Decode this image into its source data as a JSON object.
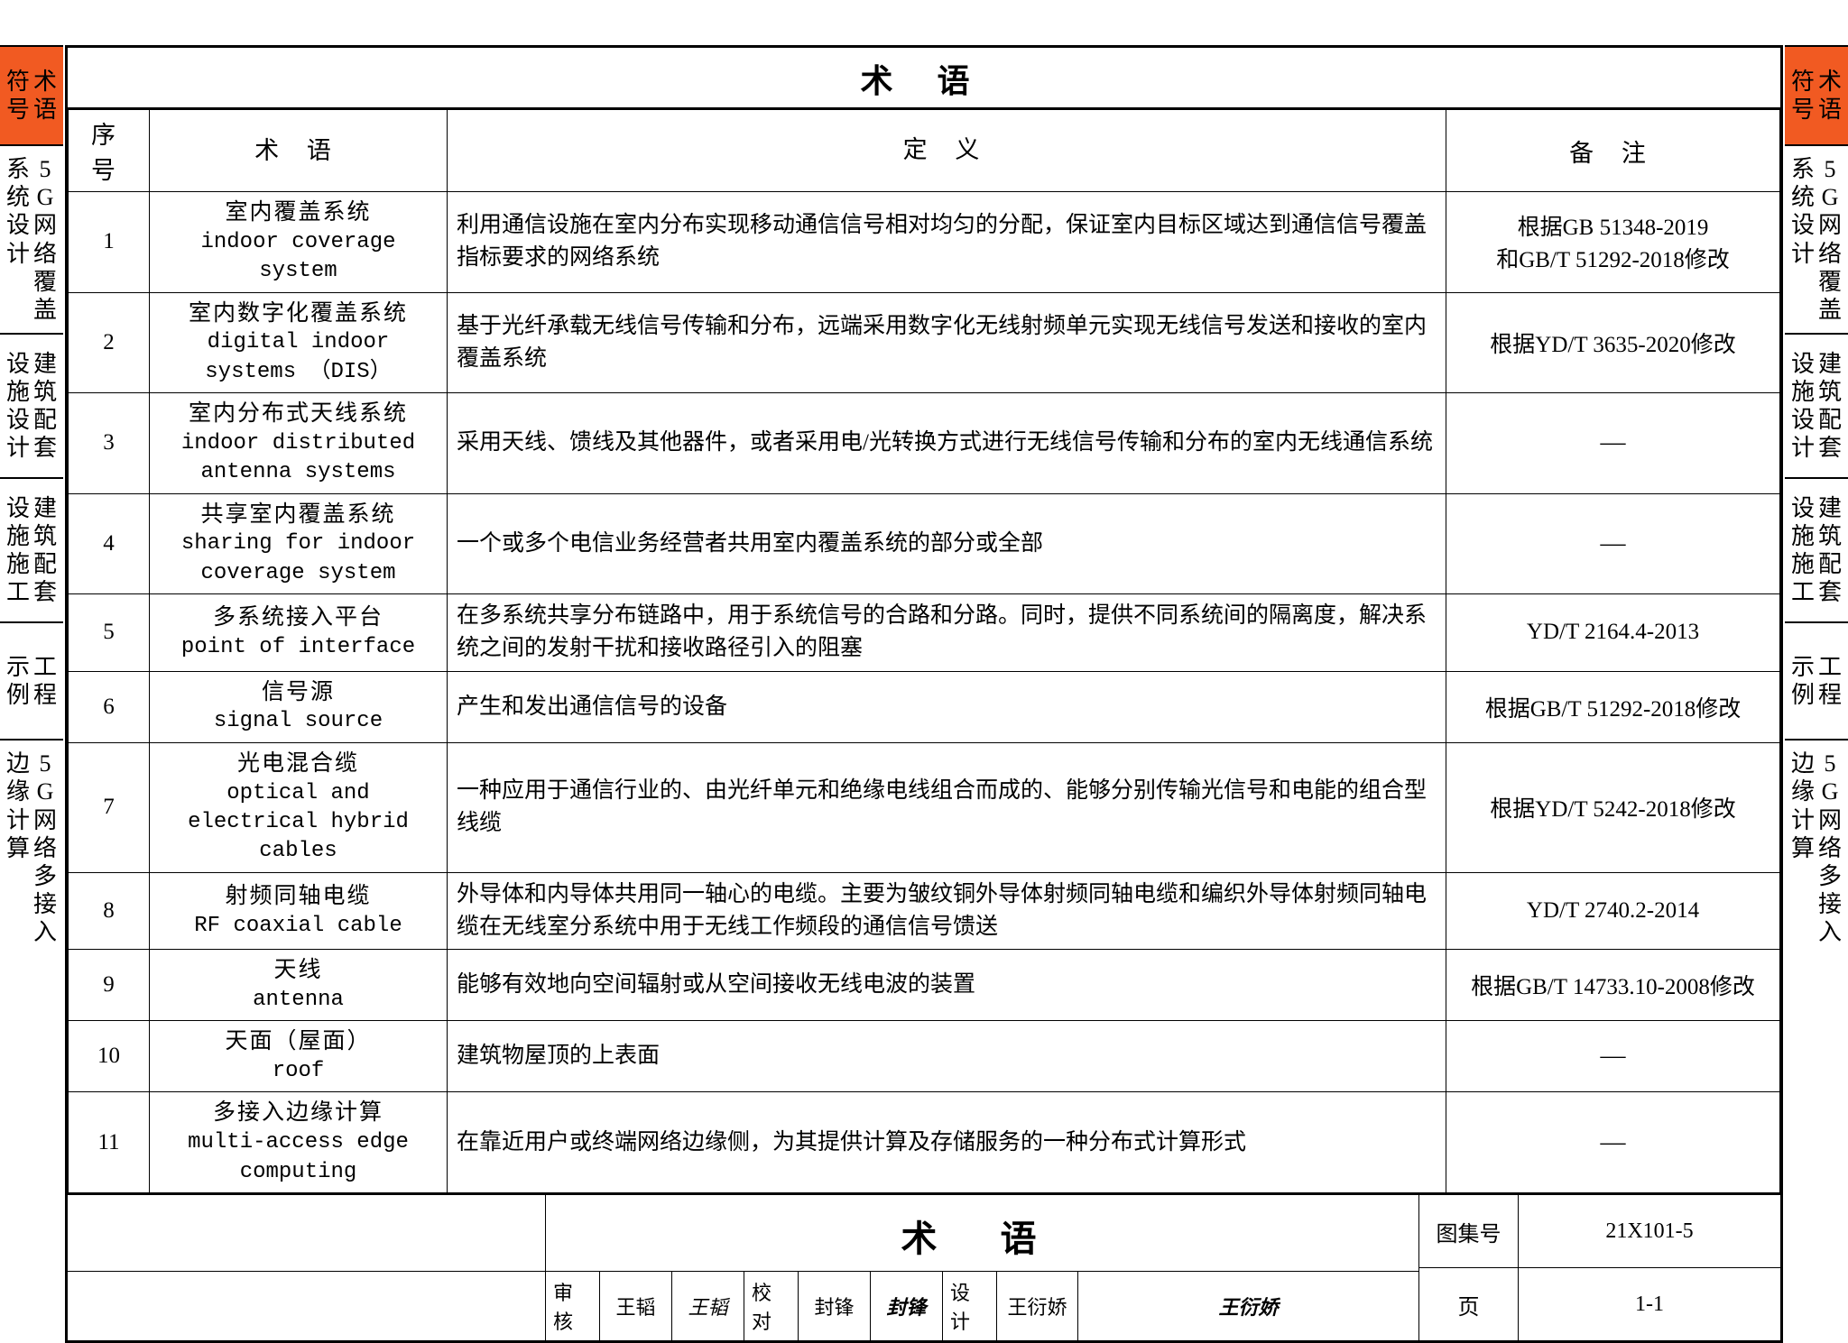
{
  "title": "术 语",
  "headers": {
    "num": "序 号",
    "term": "术  语",
    "def": "定  义",
    "note": "备 注"
  },
  "rows": [
    {
      "n": "1",
      "cn": "室内覆盖系统",
      "en": "indoor coverage system",
      "def": "利用通信设施在室内分布实现移动通信信号相对均匀的分配，保证室内目标区域达到通信信号覆盖指标要求的网络系统",
      "note": "根据GB 51348-2019\n和GB/T 51292-2018修改"
    },
    {
      "n": "2",
      "cn": "室内数字化覆盖系统",
      "en": "digital indoor systems （DIS）",
      "def": "基于光纤承载无线信号传输和分布，远端采用数字化无线射频单元实现无线信号发送和接收的室内覆盖系统",
      "note": "根据YD/T 3635-2020修改"
    },
    {
      "n": "3",
      "cn": "室内分布式天线系统",
      "en": "indoor distributed antenna systems",
      "def": "采用天线、馈线及其他器件，或者采用电/光转换方式进行无线信号传输和分布的室内无线通信系统",
      "note": "—"
    },
    {
      "n": "4",
      "cn": "共享室内覆盖系统",
      "en": "sharing for indoor coverage system",
      "def": "一个或多个电信业务经营者共用室内覆盖系统的部分或全部",
      "note": "—"
    },
    {
      "n": "5",
      "cn": "多系统接入平台",
      "en": "point of interface",
      "def": "在多系统共享分布链路中，用于系统信号的合路和分路。同时，提供不同系统间的隔离度，解决系统之间的发射干扰和接收路径引入的阻塞",
      "note": "YD/T 2164.4-2013"
    },
    {
      "n": "6",
      "cn": "信号源",
      "en": "signal source",
      "def": "产生和发出通信信号的设备",
      "note": "根据GB/T 51292-2018修改"
    },
    {
      "n": "7",
      "cn": "光电混合缆",
      "en": "optical and electrical hybrid cables",
      "def": "一种应用于通信行业的、由光纤单元和绝缘电线组合而成的、能够分别传输光信号和电能的组合型线缆",
      "note": "根据YD/T 5242-2018修改"
    },
    {
      "n": "8",
      "cn": "射频同轴电缆",
      "en": "RF coaxial cable",
      "def": "外导体和内导体共用同一轴心的电缆。主要为皱纹铜外导体射频同轴电缆和编织外导体射频同轴电缆在无线室分系统中用于无线工作频段的通信信号馈送",
      "note": "YD/T 2740.2-2014"
    },
    {
      "n": "9",
      "cn": "天线",
      "en": "antenna",
      "def": "能够有效地向空间辐射或从空间接收无线电波的装置",
      "note": "根据GB/T 14733.10-2008修改"
    },
    {
      "n": "10",
      "cn": "天面（屋面）",
      "en": "roof",
      "def": "建筑物屋顶的上表面",
      "note": "—"
    },
    {
      "n": "11",
      "cn": "多接入边缘计算",
      "en": "multi-access edge computing",
      "def": "在靠近用户或终端网络边缘侧，为其提供计算及存储服务的一种分布式计算形式",
      "note": "—"
    }
  ],
  "tabs": [
    {
      "cols": [
        "符号",
        "术语"
      ],
      "orange": true
    },
    {
      "cols": [
        "系统设计",
        "5G网络覆盖"
      ],
      "orange": false
    },
    {
      "cols": [
        "设施设计",
        "建筑配套"
      ],
      "orange": false
    },
    {
      "cols": [
        "设施施工",
        "建筑配套"
      ],
      "orange": false
    },
    {
      "cols": [
        "示例",
        "工程"
      ],
      "orange": false
    },
    {
      "cols": [
        "边缘计算",
        "5G网络多接入"
      ],
      "orange": false
    }
  ],
  "footer": {
    "title": "术  语",
    "atlas_label": "图集号",
    "atlas": "21X101-5",
    "page_label": "页",
    "page": "1-1",
    "sigs": [
      {
        "l": "审核",
        "v": "王韬"
      },
      {
        "l": "",
        "v": "王韬"
      },
      {
        "l": "校对",
        "v": "封锋"
      },
      {
        "l": "",
        "v": "封锋"
      },
      {
        "l": "设计",
        "v": "王衍娇"
      },
      {
        "l": "",
        "v": "王衍娇"
      }
    ]
  },
  "colors": {
    "accent": "#f15a22",
    "border": "#000000",
    "bg": "#ffffff"
  }
}
